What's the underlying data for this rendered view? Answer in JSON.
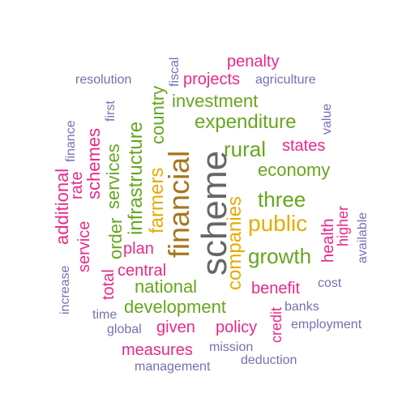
{
  "palette": {
    "slate": "#7570b3",
    "pink": "#e7298a",
    "green": "#66a61e",
    "gold": "#e6ab02",
    "brown": "#a6761d",
    "gray": "#666666"
  },
  "words": [
    {
      "text": "scheme",
      "color": "gray"
    },
    {
      "text": "financial",
      "color": "brown"
    },
    {
      "text": "companies",
      "color": "gold"
    },
    {
      "text": "farmers",
      "color": "gold"
    },
    {
      "text": "public",
      "color": "gold"
    },
    {
      "text": "three",
      "color": "green"
    },
    {
      "text": "growth",
      "color": "green"
    },
    {
      "text": "rural",
      "color": "green"
    },
    {
      "text": "economy",
      "color": "green"
    },
    {
      "text": "expenditure",
      "color": "green"
    },
    {
      "text": "investment",
      "color": "green"
    },
    {
      "text": "national",
      "color": "green"
    },
    {
      "text": "development",
      "color": "green"
    },
    {
      "text": "infrastructure",
      "color": "green"
    },
    {
      "text": "country",
      "color": "green"
    },
    {
      "text": "services",
      "color": "green"
    },
    {
      "text": "order",
      "color": "green"
    },
    {
      "text": "states",
      "color": "pink"
    },
    {
      "text": "penalty",
      "color": "pink"
    },
    {
      "text": "projects",
      "color": "pink"
    },
    {
      "text": "schemes",
      "color": "pink"
    },
    {
      "text": "additional",
      "color": "pink"
    },
    {
      "text": "rate",
      "color": "pink"
    },
    {
      "text": "service",
      "color": "pink"
    },
    {
      "text": "total",
      "color": "pink"
    },
    {
      "text": "plan",
      "color": "pink"
    },
    {
      "text": "central",
      "color": "pink"
    },
    {
      "text": "benefit",
      "color": "pink"
    },
    {
      "text": "health",
      "color": "pink"
    },
    {
      "text": "higher",
      "color": "pink"
    },
    {
      "text": "policy",
      "color": "pink"
    },
    {
      "text": "given",
      "color": "pink"
    },
    {
      "text": "measures",
      "color": "pink"
    },
    {
      "text": "credit",
      "color": "pink"
    },
    {
      "text": "resolution",
      "color": "slate"
    },
    {
      "text": "agriculture",
      "color": "slate"
    },
    {
      "text": "fiscal",
      "color": "slate"
    },
    {
      "text": "first",
      "color": "slate"
    },
    {
      "text": "value",
      "color": "slate"
    },
    {
      "text": "finance",
      "color": "slate"
    },
    {
      "text": "increase",
      "color": "slate"
    },
    {
      "text": "available",
      "color": "slate"
    },
    {
      "text": "cost",
      "color": "slate"
    },
    {
      "text": "banks",
      "color": "slate"
    },
    {
      "text": "time",
      "color": "slate"
    },
    {
      "text": "global",
      "color": "slate"
    },
    {
      "text": "employment",
      "color": "slate"
    },
    {
      "text": "mission",
      "color": "slate"
    },
    {
      "text": "deduction",
      "color": "slate"
    },
    {
      "text": "management",
      "color": "slate"
    }
  ]
}
